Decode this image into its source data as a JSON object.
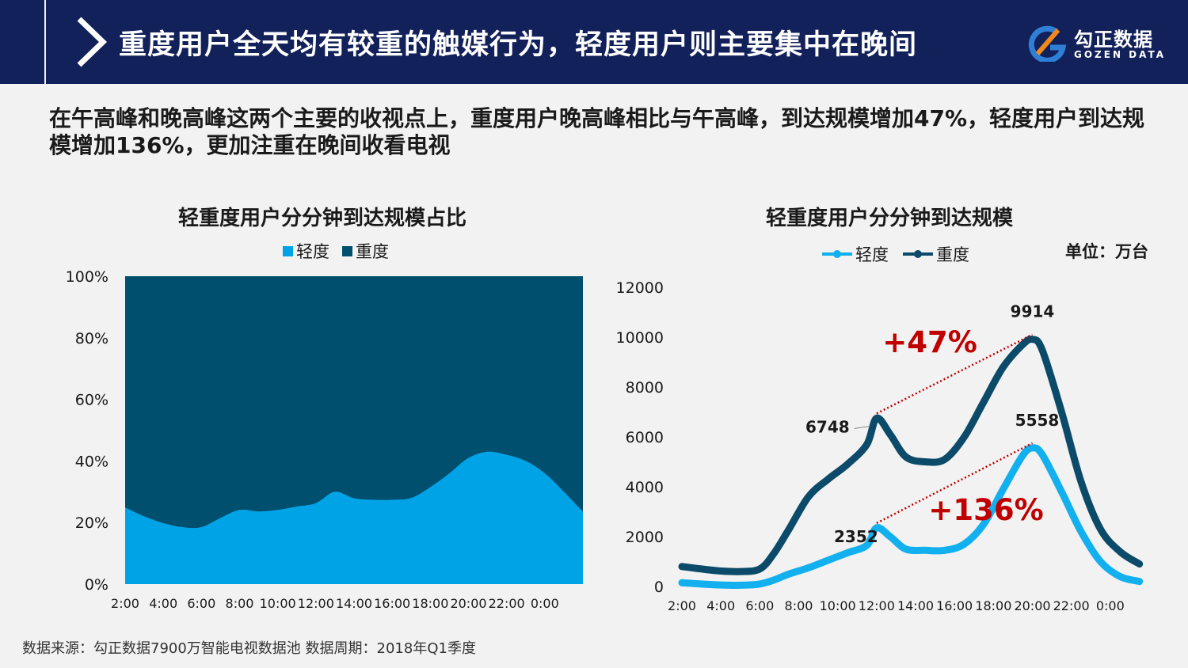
{
  "header": {
    "title": "重度用户全天均有较重的触媒行为，轻度用户则主要集中在晚间",
    "logo_cn": "勾正数据",
    "logo_en": "GOZEN DATA"
  },
  "subtitle": "在午高峰和晚高峰这两个主要的收视点上，重度用户晚高峰相比与午高峰，到达规模增加47%，轻度用户到达规模增加136%，更加注重在晚间收看电视",
  "source": "数据来源：勾正数据7900万智能电视数据池  数据周期：2018年Q1季度",
  "colors": {
    "light": "#00a3e6",
    "heavy": "#004f6e",
    "heavy_line": "#0b4a68",
    "light_line": "#12b0ee",
    "annotation": "#c00000"
  },
  "chart_data": [
    {
      "type": "area",
      "stacked_percent": true,
      "title": "轻重度用户分分钟到达规模占比",
      "legend": [
        "轻度",
        "重度"
      ],
      "x_ticks": [
        "2:00",
        "4:00",
        "6:00",
        "8:00",
        "10:00",
        "12:00",
        "14:00",
        "16:00",
        "18:00",
        "20:00",
        "22:00",
        "0:00"
      ],
      "y_ticks": [
        "0%",
        "20%",
        "40%",
        "60%",
        "80%",
        "100%"
      ],
      "ylim": [
        0,
        100
      ],
      "xlim": [
        2,
        26
      ],
      "x": [
        2,
        3,
        4,
        5,
        6,
        7,
        8,
        9,
        10,
        11,
        12,
        13,
        14,
        15,
        16,
        17,
        18,
        19,
        20,
        21,
        22,
        23,
        24,
        25,
        26
      ],
      "series": [
        {
          "name": "轻度",
          "values": [
            24.9,
            22,
            19.8,
            18.5,
            18.5,
            21.5,
            24.1,
            23.6,
            24.1,
            25.2,
            26.3,
            30,
            27.9,
            27.4,
            27.4,
            28,
            31.5,
            36,
            41,
            43,
            42,
            40,
            36,
            30,
            23.5
          ]
        },
        {
          "name": "重度",
          "values": [
            75.1,
            78,
            80.2,
            81.5,
            81.5,
            78.5,
            75.9,
            76.4,
            75.9,
            74.8,
            73.7,
            70,
            72.1,
            72.6,
            72.6,
            72,
            68.5,
            64,
            59,
            57,
            58,
            60,
            64,
            70,
            76.5
          ]
        }
      ]
    },
    {
      "type": "line",
      "title": "轻重度用户分分钟到达规模",
      "unit": "单位：万台",
      "legend": [
        "轻度",
        "重度"
      ],
      "x_ticks": [
        "2:00",
        "4:00",
        "6:00",
        "8:00",
        "10:00",
        "12:00",
        "14:00",
        "16:00",
        "18:00",
        "20:00",
        "22:00",
        "0:00"
      ],
      "y_ticks": [
        "0",
        "2000",
        "4000",
        "6000",
        "8000",
        "10000",
        "12000"
      ],
      "ylim": [
        0,
        12000
      ],
      "xlim": [
        2,
        26
      ],
      "x": [
        2,
        3,
        4,
        5,
        6,
        6.7,
        7.5,
        8.5,
        9.5,
        10.5,
        11.5,
        12,
        12.7,
        13.5,
        14.5,
        15.5,
        16.5,
        17.5,
        18.5,
        19.5,
        20,
        20.5,
        21.5,
        22.5,
        23.5,
        24.5,
        25.5
      ],
      "series": [
        {
          "name": "轻度",
          "values": [
            150,
            100,
            60,
            50,
            100,
            250,
            500,
            750,
            1050,
            1350,
            1650,
            2352,
            2000,
            1500,
            1450,
            1450,
            1700,
            2500,
            3900,
            5250,
            5558,
            5300,
            3800,
            2200,
            1000,
            400,
            200
          ]
        },
        {
          "name": "重度",
          "values": [
            800,
            700,
            620,
            600,
            700,
            1300,
            2300,
            3600,
            4300,
            4900,
            5700,
            6748,
            6100,
            5200,
            5000,
            5100,
            6000,
            7400,
            8800,
            9700,
            9914,
            9500,
            7000,
            4200,
            2300,
            1400,
            900
          ]
        }
      ],
      "point_labels": [
        {
          "series": "重度",
          "x": 12,
          "label": "6748"
        },
        {
          "series": "重度",
          "x": 20,
          "label": "9914"
        },
        {
          "series": "轻度",
          "x": 12,
          "label": "2352"
        },
        {
          "series": "轻度",
          "x": 20,
          "label": "5558"
        }
      ],
      "annotations": [
        {
          "series": "重度",
          "from_x": 12,
          "to_x": 20,
          "label": "+47%"
        },
        {
          "series": "轻度",
          "from_x": 12,
          "to_x": 20,
          "label": "+136%"
        }
      ]
    }
  ]
}
